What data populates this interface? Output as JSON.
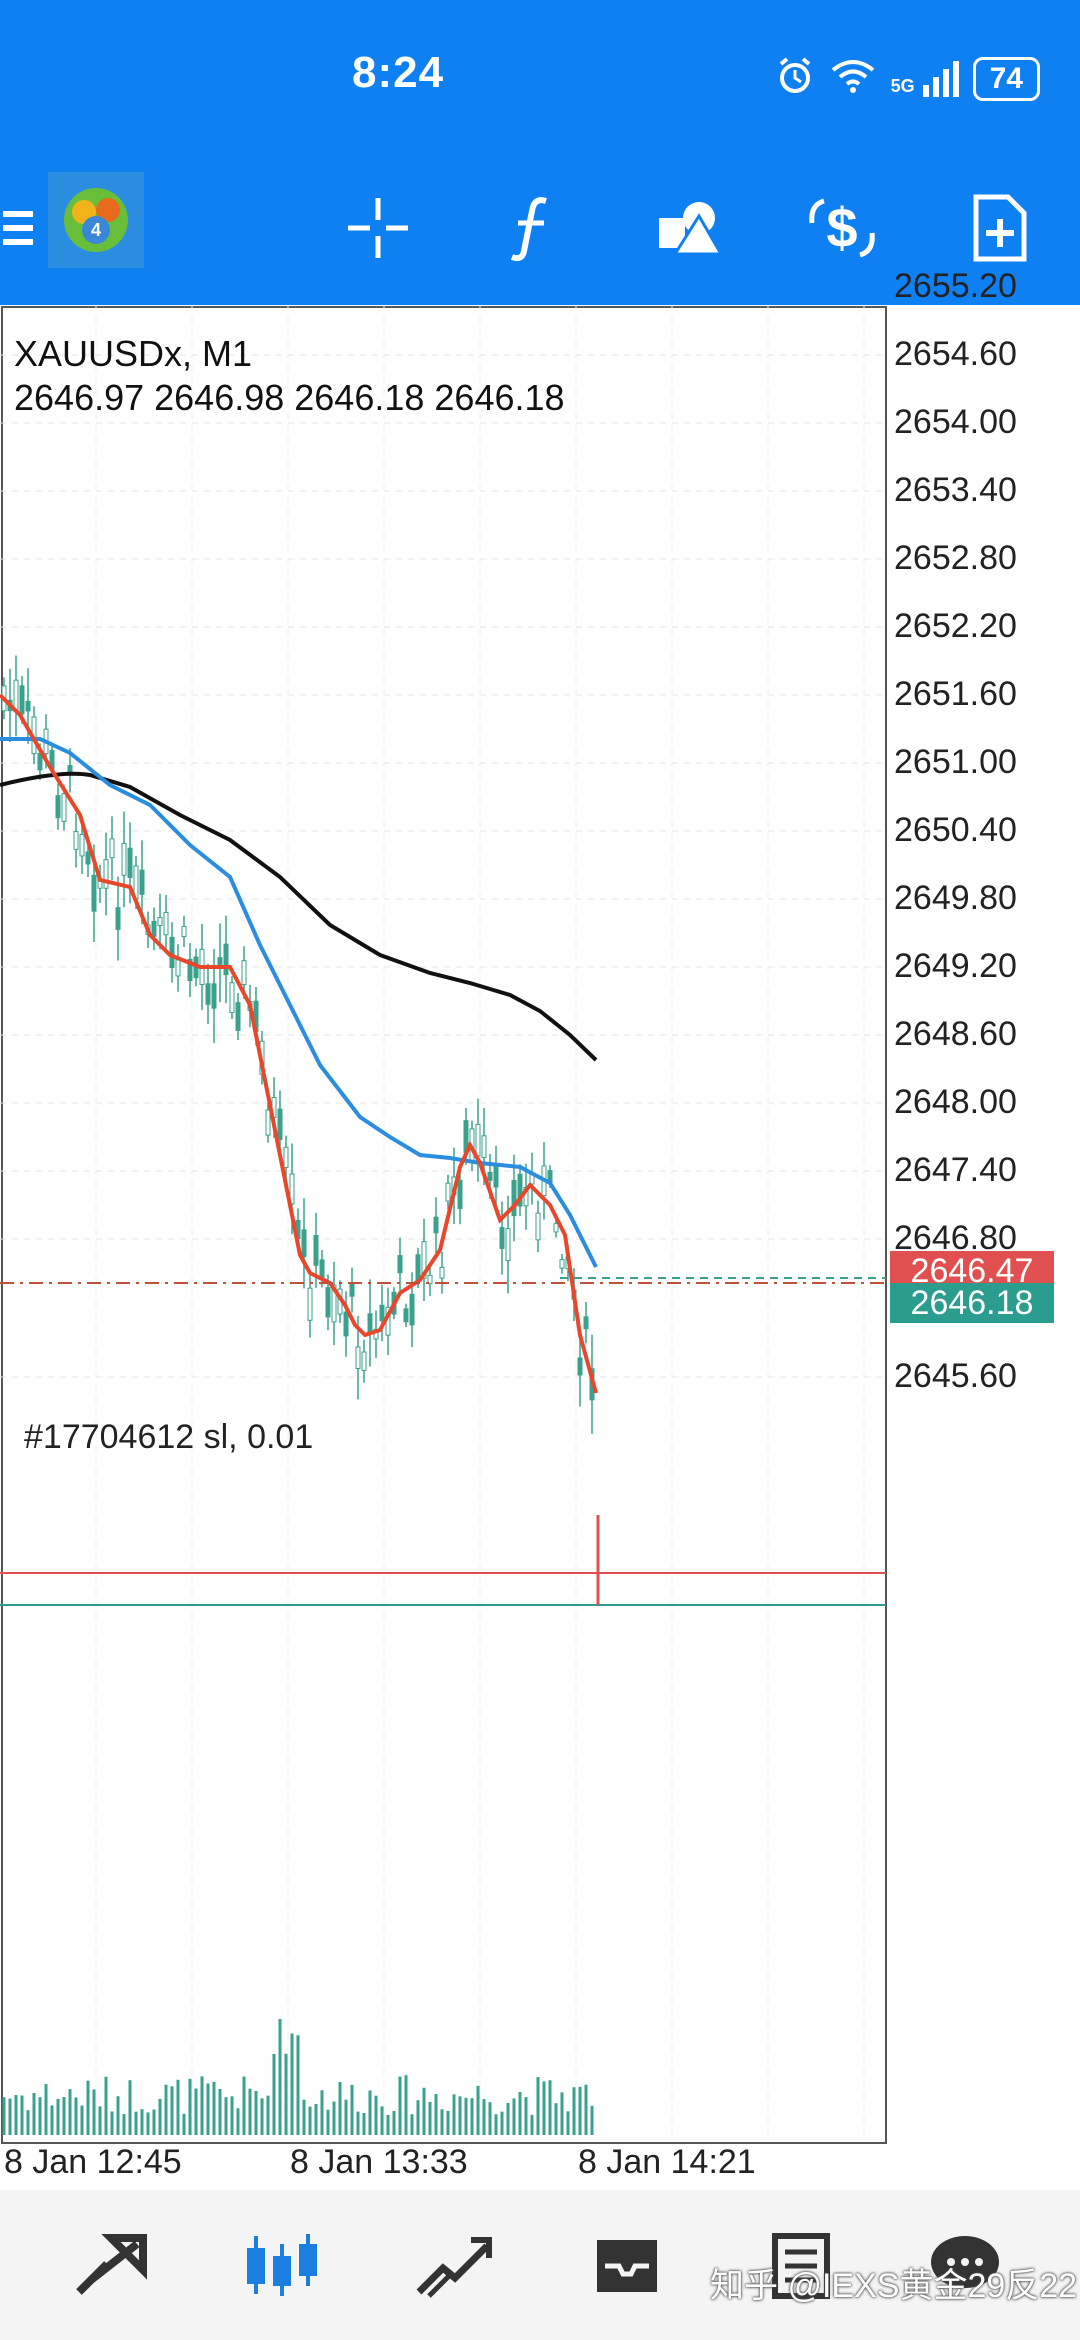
{
  "status": {
    "time": "8:24",
    "battery": "74",
    "network": "5G"
  },
  "toolbar": {
    "icons": [
      "menu-icon",
      "mt4-logo",
      "crosshair-icon",
      "indicators-icon",
      "objects-icon",
      "symbols-icon",
      "new-order-icon"
    ]
  },
  "chart": {
    "symbol": "XAUUSDx, M1",
    "ohlc": "2646.97 2646.98 2646.18 2646.18",
    "price_axis": [
      "2655.20",
      "2654.60",
      "2654.00",
      "2653.40",
      "2652.80",
      "2652.20",
      "2651.60",
      "2651.00",
      "2650.40",
      "2649.80",
      "2649.20",
      "2648.60",
      "2648.00",
      "2647.40",
      "2646.80",
      "2645.60"
    ],
    "ask_price": "2646.47",
    "bid_price": "2646.18",
    "ask_color": "#e05050",
    "bid_color": "#2a9d8f",
    "order_label": "#17704612 sl, 0.01",
    "time_axis": [
      "8 Jan 12:45",
      "8 Jan 13:33",
      "8 Jan 14:21"
    ],
    "colors": {
      "ma_fast": "#e8472b",
      "ma_mid": "#2b8de0",
      "ma_slow": "#111111",
      "candles": "#3aa18c"
    }
  },
  "nav": {
    "items": [
      "quotes-tab",
      "chart-tab",
      "trade-tab",
      "history-tab",
      "news-tab",
      "messages-tab"
    ]
  },
  "watermark": "知乎 @IEXS黄金29反22"
}
